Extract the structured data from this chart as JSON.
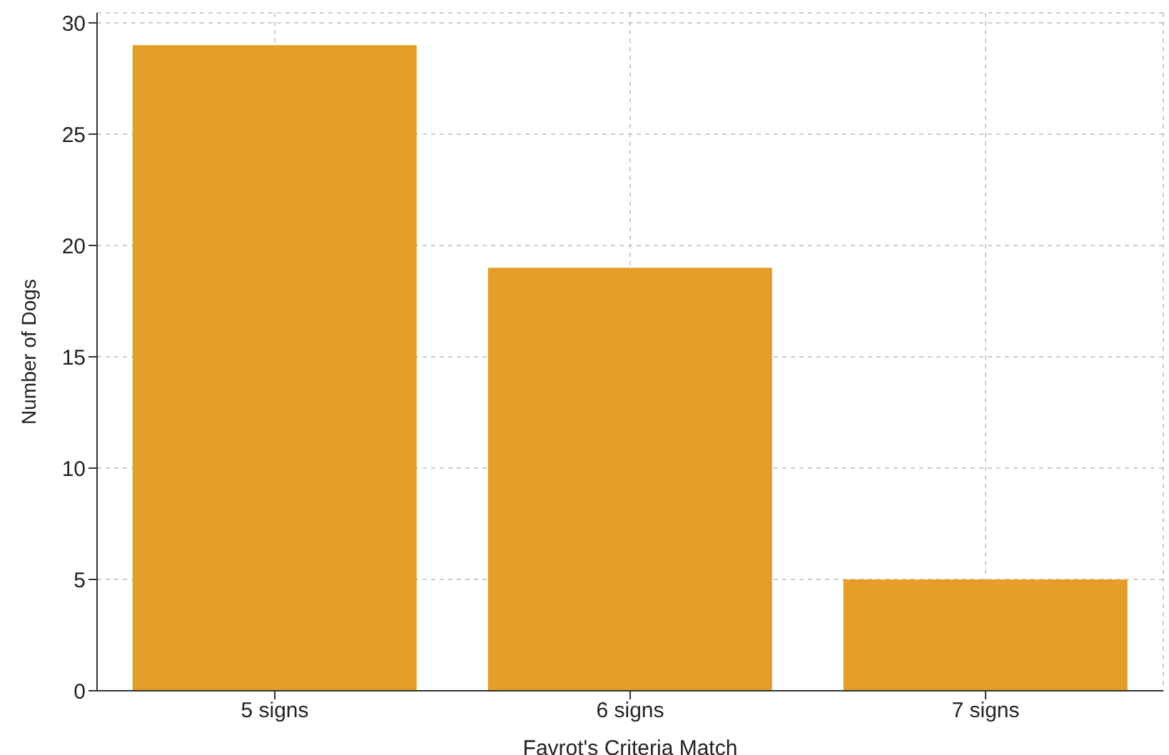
{
  "chart_data": {
    "type": "bar",
    "xlabel": "Favrot's Criteria Match",
    "ylabel": "Number of Dogs",
    "categories": [
      "5 signs",
      "6 signs",
      "7 signs"
    ],
    "values": [
      29,
      19,
      5
    ],
    "color": "#e39e27",
    "ylim": [
      0,
      30.45
    ],
    "yticks": [
      0,
      5,
      10,
      15,
      20,
      25,
      30
    ],
    "grid": true
  }
}
